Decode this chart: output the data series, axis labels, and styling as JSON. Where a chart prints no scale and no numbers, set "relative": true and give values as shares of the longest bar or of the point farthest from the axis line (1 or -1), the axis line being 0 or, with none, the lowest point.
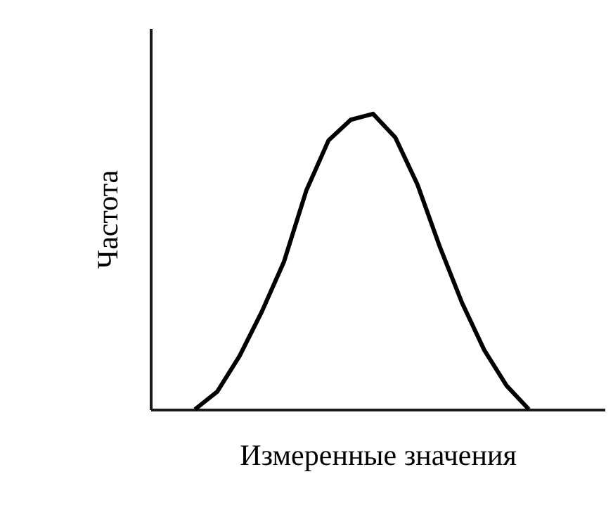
{
  "chart_data": {
    "type": "line",
    "xlabel": "Измеренные значения",
    "ylabel": "Частота",
    "relative": true,
    "line_style": "solid",
    "categories": [
      null,
      null,
      null,
      null,
      null,
      null,
      null,
      null,
      null,
      null,
      null,
      null,
      null,
      null,
      null,
      null
    ],
    "series": [
      {
        "color": "#000000",
        "values": [
          0,
          0.06,
          0.18,
          0.33,
          0.5,
          0.74,
          0.91,
          0.98,
          1,
          0.92,
          0.76,
          0.55,
          0.36,
          0.2,
          0.08,
          0
        ]
      }
    ]
  }
}
